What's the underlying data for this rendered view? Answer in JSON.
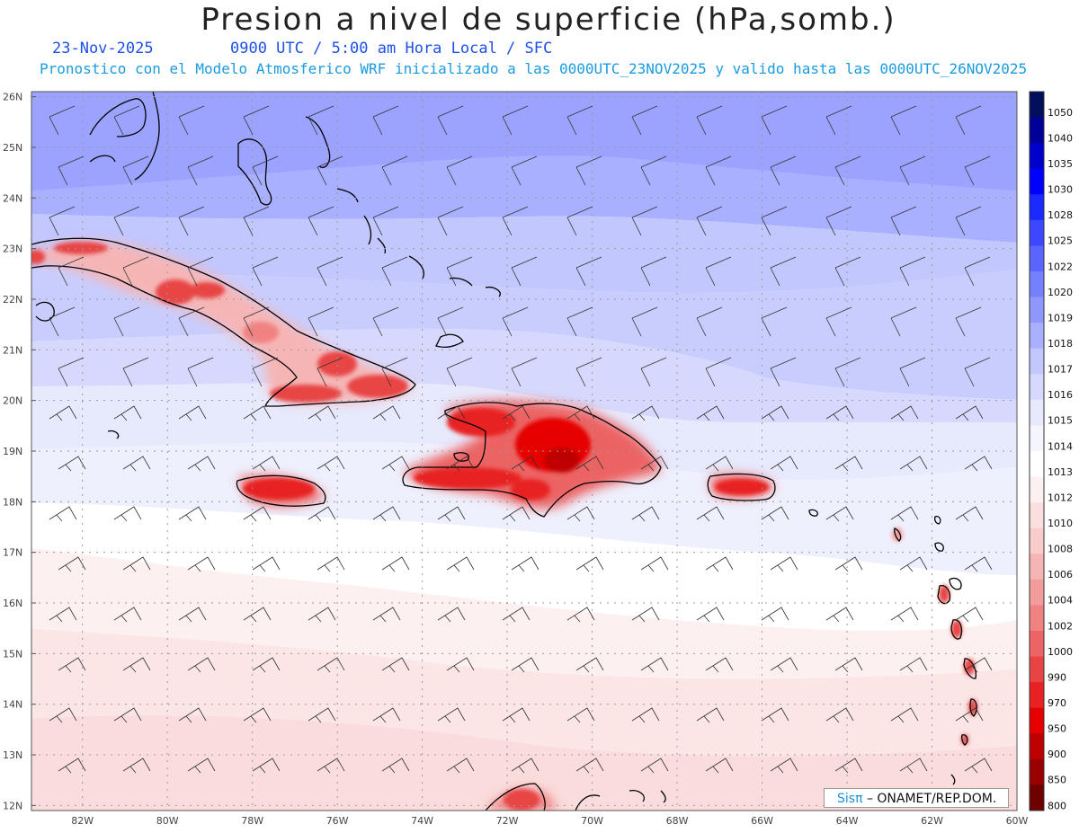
{
  "title": "Presion a nivel de superficie (hPa,somb.)",
  "date": "23-Nov-2025",
  "time_info": "0900 UTC / 5:00 am Hora Local / SFC",
  "forecast_info": "Pronostico con el Modelo Atmosferico WRF inicializado a las 0000UTC_23NOV2025 y valido hasta las  0000UTC_26NOV2025",
  "credit_brand": "Sisπ",
  "credit_text": " – ONAMET/REP.DOM.",
  "lat_labels": [
    "26N",
    "25N",
    "24N",
    "23N",
    "22N",
    "21N",
    "20N",
    "19N",
    "18N",
    "17N",
    "16N",
    "15N",
    "14N",
    "13N",
    "12N"
  ],
  "lon_labels": [
    "82W",
    "80W",
    "78W",
    "76W",
    "74W",
    "72W",
    "70W",
    "68W",
    "66W",
    "64W",
    "62W",
    "60W"
  ],
  "map_extent": {
    "lon_min": -83.2,
    "lon_max": -60,
    "lat_min": 11.9,
    "lat_max": 26.1
  },
  "colorbar": {
    "levels": [
      1050,
      1040,
      1035,
      1030,
      1028,
      1025,
      1022,
      1020,
      1019,
      1018,
      1017,
      1016,
      1015,
      1014,
      1013,
      1012,
      1010,
      1008,
      1006,
      1004,
      1002,
      1000,
      990,
      970,
      950,
      900,
      850,
      800
    ],
    "colors": [
      "#000e5c",
      "#000099",
      "#0000cc",
      "#0000ff",
      "#1a2aff",
      "#3c48ff",
      "#5a65ff",
      "#7580ff",
      "#8f98ff",
      "#a9b0ff",
      "#c2c7fe",
      "#d6d9fd",
      "#e7e9fd",
      "#f4f5fe",
      "#ffffff",
      "#fdf0f0",
      "#fbdfdf",
      "#f9cccc",
      "#f6b5b5",
      "#f39c9c",
      "#f08282",
      "#ec6464",
      "#e84444",
      "#e82222",
      "#e60000",
      "#bf0000",
      "#990000",
      "#6e0000"
    ]
  }
}
